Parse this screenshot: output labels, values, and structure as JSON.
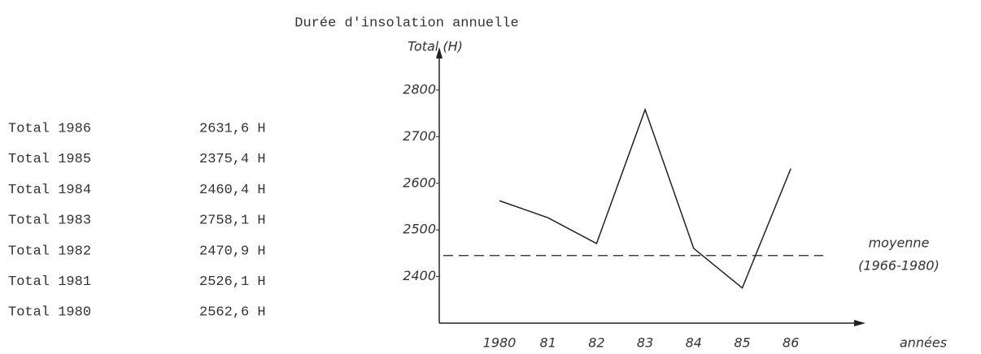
{
  "title": "Durée d'insolation annuelle",
  "table": {
    "rows": [
      [
        "Total 1986",
        "2631,6 H"
      ],
      [
        "Total 1985",
        "2375,4 H"
      ],
      [
        "Total 1984",
        "2460,4 H"
      ],
      [
        "Total 1983",
        "2758,1 H"
      ],
      [
        "Total 1982",
        "2470,9 H"
      ],
      [
        "Total 1981",
        "2526,1 H"
      ],
      [
        "Total 1980",
        "2562,6 H"
      ]
    ]
  },
  "chart_data": {
    "type": "line",
    "y_label": "Total (H)",
    "x_label": "années",
    "categories": [
      "1980",
      "81",
      "82",
      "83",
      "84",
      "85",
      "86"
    ],
    "values": [
      2562.6,
      2526.1,
      2470.9,
      2758.1,
      2460.4,
      2375.4,
      2631.6
    ],
    "color": "#222222",
    "ylim": [
      2300,
      2880
    ],
    "yticks": [
      2400,
      2500,
      2600,
      2700,
      2800
    ],
    "reference_line": {
      "value": 2445,
      "label_lines": [
        "moyenne",
        "(1966-1980)"
      ]
    }
  }
}
